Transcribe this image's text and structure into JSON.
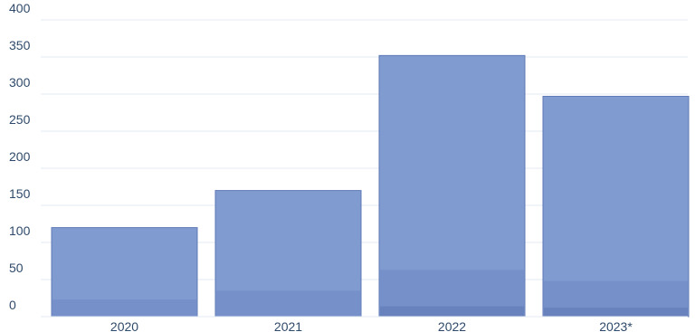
{
  "chart_data": {
    "type": "bar",
    "categories": [
      "2020",
      "2021",
      "2022",
      "2023*"
    ],
    "values": [
      120,
      170,
      352,
      297
    ],
    "inner_values": [
      23,
      35,
      63,
      48
    ],
    "base_values": [
      0,
      0,
      14,
      12
    ],
    "ylim": [
      0,
      400
    ],
    "yticks": [
      0,
      50,
      100,
      150,
      200,
      250,
      300,
      350,
      400
    ],
    "ytick_labels": [
      "0",
      "50",
      "100",
      "150",
      "200",
      "250",
      "300",
      "350",
      "400"
    ],
    "grid": true,
    "legend": "none",
    "title": "",
    "xlabel": "",
    "ylabel": ""
  },
  "colors": {
    "bar": "#7f9bd0",
    "bar_stroke": "#5f79b6",
    "inner_band": "#6f89c3",
    "base_band": "#5f78b8",
    "grid": "#e3e8f2",
    "tick_text": "#2f4a6a"
  }
}
